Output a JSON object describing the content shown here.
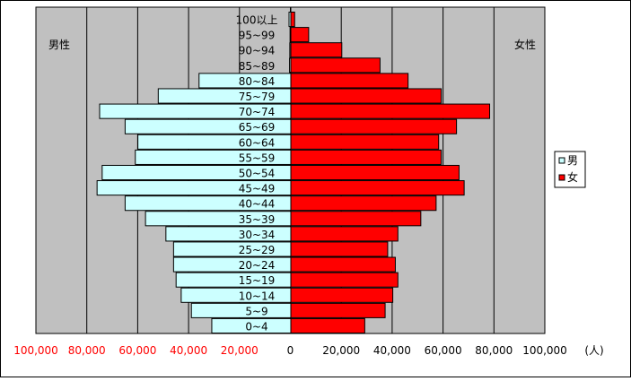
{
  "chart_data": {
    "type": "bar",
    "orientation": "horizontal",
    "categories": [
      "0~4",
      "5~9",
      "10~14",
      "15~19",
      "20~24",
      "25~29",
      "30~34",
      "35~39",
      "40~44",
      "45~49",
      "50~54",
      "55~59",
      "60~64",
      "65~69",
      "70~74",
      "75~79",
      "80~84",
      "85~89",
      "90~94",
      "95~99",
      "100以上"
    ],
    "series": [
      {
        "name": "男",
        "color": "#ccffff",
        "values": [
          31000,
          39000,
          43000,
          45000,
          46000,
          46000,
          49000,
          57000,
          65000,
          76000,
          74000,
          61000,
          60000,
          65000,
          75000,
          52000,
          36000,
          500,
          400,
          300,
          700
        ]
      },
      {
        "name": "女",
        "color": "#ff0000",
        "values": [
          29000,
          37000,
          40000,
          42000,
          41000,
          38000,
          42000,
          51000,
          57000,
          68000,
          66000,
          59000,
          58000,
          65000,
          78000,
          59000,
          46000,
          35000,
          20000,
          7000,
          1500
        ]
      }
    ],
    "xlim": [
      -100000,
      100000
    ],
    "x_ticks": [
      "100,000",
      "80,000",
      "60,000",
      "40,000",
      "20,000",
      "0",
      "20,000",
      "40,000",
      "60,000",
      "80,000",
      "100,000"
    ],
    "x_unit": "(人)",
    "left_label": "男性",
    "right_label": "女性",
    "legend": {
      "position": "right",
      "entries": [
        "男",
        "女"
      ]
    },
    "grid": true,
    "plot_background": "#c0c0c0",
    "negative_tick_color": "#ff0000",
    "positive_tick_color": "#000000"
  }
}
